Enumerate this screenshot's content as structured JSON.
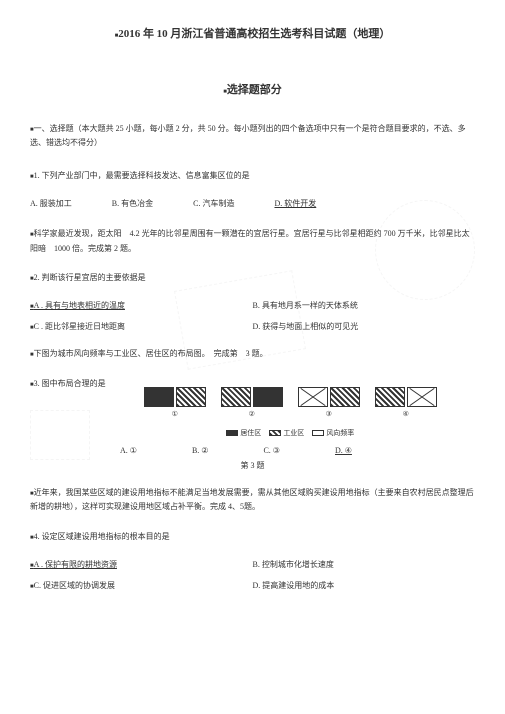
{
  "exam": {
    "title": "2016 年 10 月浙江省普通高校招生选考科目试题（地理）",
    "subtitle": "选择题部分",
    "section_intro": "一、选择题（本大题共 25 小题，每小题 2 分，共 50 分。每小题列出的四个备选项中只有一个是符合题目要求的，不选、多选、错选均不得分）"
  },
  "q1": {
    "text": "1. 下列产业部门中，最需要选择科技发达、信息富集区位的是",
    "a": "A. 服装加工",
    "b": "B. 有色冶金",
    "c": "C. 汽车制造",
    "d": "D. 软件开发"
  },
  "context2": "科学家最近发现，距太阳　4.2 光年的比邻星周围有一颗潜在的宜居行星。宜居行星与比邻星相距约 700 万千米，比邻星比太阳暗　1000 倍。完成第 2 题。",
  "q2": {
    "text": "2. 判断该行星宜居的主要依据是",
    "a": "A . 具有与地表相近的温度",
    "b": "B. 具有地月系一样的天体系统",
    "c": "C . 距比邻星接近日地距离",
    "d": "D. 获得与地面上相似的可见光"
  },
  "context3": "下图为城市风向频率与工业区、居住区的布局图。　完成第　3 题。",
  "q3": {
    "text": "3. 图中布局合理的是",
    "a": "A. ①",
    "b": "B. ②",
    "c": "C. ③",
    "d": "D. ④",
    "chart_label": "第 3 题",
    "legend": {
      "item1": "居住区",
      "item2": "工业区",
      "item3": "风向频率"
    },
    "nums": [
      "①",
      "②",
      "③",
      "④"
    ]
  },
  "context4": "近年来，我国某些区域的建设用地指标不能满足当地发展需要，需从其他区域购买建设用地指标（主要来自农村居民点整理后新增的耕地），这样可实现建设用地区域占补平衡。完成 4、5题。",
  "q4": {
    "text": "4. 设定区域建设用地指标的根本目的是",
    "a": "A . 保护有限的耕地资源",
    "b": "B. 控制城市化增长速度",
    "c": "C. 促进区域的协调发展",
    "d": "D. 提高建设用地的成本"
  },
  "colors": {
    "text": "#333333",
    "bg": "#ffffff"
  }
}
